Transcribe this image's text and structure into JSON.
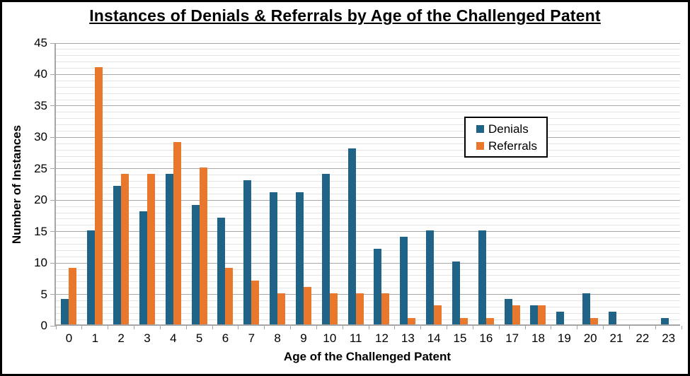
{
  "chart_data": {
    "type": "bar",
    "title": "Instances of Denials & Referrals by Age of the Challenged Patent",
    "xlabel": "Age of the Challenged Patent",
    "ylabel": "Number of Instances",
    "categories": [
      "0",
      "1",
      "2",
      "3",
      "4",
      "5",
      "6",
      "7",
      "8",
      "9",
      "10",
      "11",
      "12",
      "13",
      "14",
      "15",
      "16",
      "17",
      "18",
      "19",
      "20",
      "21",
      "22",
      "23"
    ],
    "series": [
      {
        "name": "Denials",
        "color": "#1F6487",
        "values": [
          4,
          15,
          22,
          18,
          24,
          19,
          17,
          23,
          21,
          21,
          24,
          28,
          12,
          14,
          15,
          10,
          15,
          4,
          3,
          2,
          5,
          2,
          0,
          1
        ]
      },
      {
        "name": "Referrals",
        "color": "#EA782C",
        "values": [
          9,
          41,
          24,
          24,
          29,
          25,
          9,
          7,
          5,
          6,
          5,
          5,
          5,
          1,
          3,
          1,
          1,
          3,
          3,
          0,
          1,
          0,
          0,
          0
        ]
      }
    ],
    "ylim": [
      0,
      45
    ],
    "yticks": [
      0,
      5,
      10,
      15,
      20,
      25,
      30,
      35,
      40,
      45
    ],
    "minor_unit": 1,
    "major_unit": 5,
    "grid": "horizontal-minor-and-major",
    "legend_position": "inside-upper-right"
  }
}
